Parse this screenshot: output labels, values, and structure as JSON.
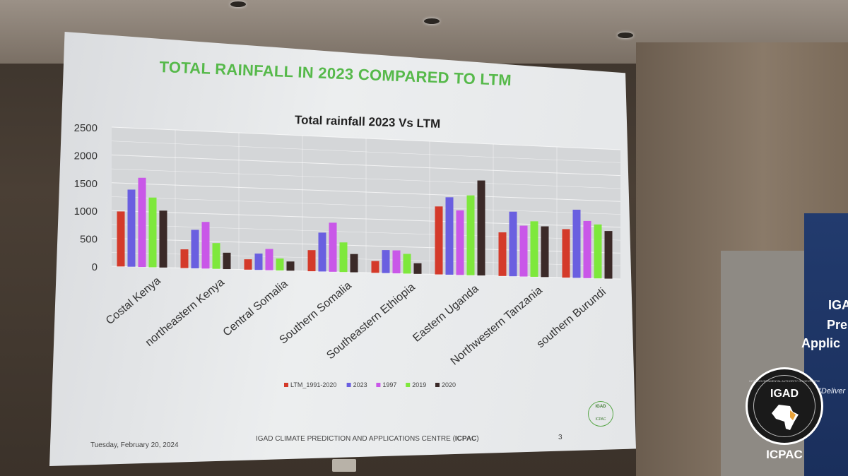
{
  "slide": {
    "title": "TOTAL RAINFALL IN  2023  COMPARED TO LTM",
    "date": "Tuesday, February 20, 2024",
    "centre_prefix": "IGAD CLIMATE PREDICTION AND APPLICATIONS CENTRE (",
    "centre_bold": "ICPAC",
    "centre_suffix": ")",
    "page_number": "3",
    "small_logo_text": "IGAD",
    "small_logo_sub": "ICPAC"
  },
  "room": {
    "banner_lines": [
      "IGA",
      "Pre",
      "Applic"
    ],
    "banner_tagline": "\"Deliver",
    "logo_top": "IGAD",
    "logo_ring_text": "INTERGOVERNMENTAL AUTHORITY ON DEVELOPMENT",
    "logo_bottom": "ICPAC"
  },
  "colors": {
    "title_green": "#56b94a",
    "series": [
      "#d43a2a",
      "#6a5fe0",
      "#c957e8",
      "#7ee83c",
      "#3b2a28"
    ]
  },
  "chart_data": {
    "type": "bar",
    "title": "Total rainfall 2023 Vs  LTM",
    "categories": [
      "Costal Kenya",
      "northeastern Kenya",
      "Central Somalia",
      "Southern Somalia",
      "Southeastern Ethiopia",
      "Eastern Uganda",
      "Northwestern Tanzania",
      "southern Burundi"
    ],
    "series": [
      {
        "name": "LTM_1991-2020",
        "values": [
          990,
          340,
          190,
          390,
          220,
          1280,
          830,
          930
        ]
      },
      {
        "name": "2023",
        "values": [
          1390,
          700,
          300,
          720,
          430,
          1460,
          1230,
          1310
        ]
      },
      {
        "name": "1997",
        "values": [
          1610,
          850,
          390,
          910,
          430,
          1220,
          970,
          1100
        ]
      },
      {
        "name": "2019",
        "values": [
          1260,
          470,
          220,
          550,
          370,
          1510,
          1060,
          1040
        ]
      },
      {
        "name": "2020",
        "values": [
          1030,
          300,
          170,
          340,
          200,
          1800,
          970,
          920
        ]
      }
    ],
    "yticks": [
      "0",
      "500",
      "1000",
      "1500",
      "2000",
      "2500"
    ],
    "ylim": [
      0,
      2500
    ],
    "grid": true,
    "legend_position": "bottom"
  }
}
